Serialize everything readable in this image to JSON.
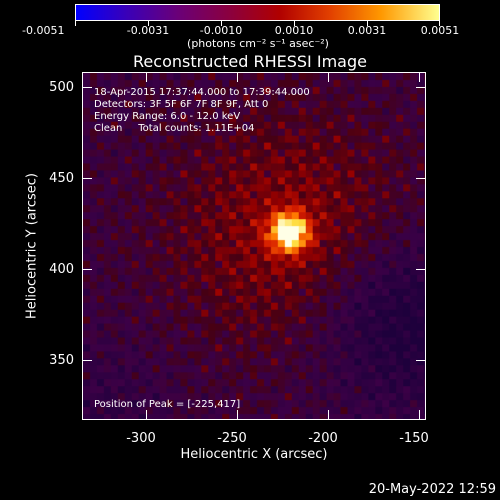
{
  "colorbar": {
    "tick_labels": [
      "-0.0051",
      "-0.0031",
      "-0.0010",
      "0.0010",
      "0.0031",
      "0.0051"
    ],
    "units": "(photons cm⁻² s⁻¹ asec⁻²)"
  },
  "plot": {
    "title": "Reconstructed RHESSI Image",
    "info_lines": [
      "18-Apr-2015 17:37:44.000 to 17:39:44.000",
      "Detectors: 3F 5F 6F 7F 8F 9F, Att 0",
      "Energy Range: 6.0 - 12.0 keV",
      "Clean     Total counts: 1.11E+04"
    ],
    "peak_text": "Position of Peak = [-225,417]",
    "xlabel": "Heliocentric X (arcsec)",
    "ylabel": "Heliocentric Y (arcsec)",
    "x_tick_labels": [
      "-300",
      "-250",
      "-200",
      "-150"
    ],
    "y_tick_labels": [
      "500",
      "450",
      "400",
      "350"
    ],
    "xlim": [
      -337,
      -148
    ],
    "ylim": [
      311,
      504
    ],
    "peak": [
      -225,
      417
    ]
  },
  "timestamp": "20-May-2022 12:59",
  "colors": {
    "background": "#000000",
    "text": "#ffffff"
  }
}
